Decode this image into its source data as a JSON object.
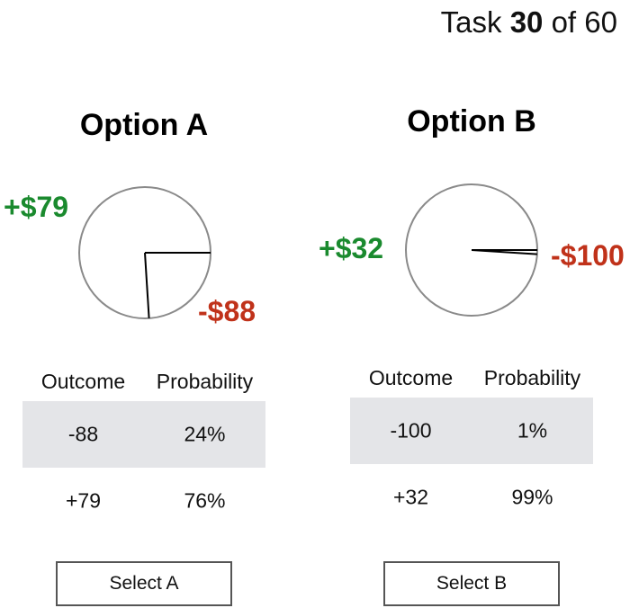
{
  "header": {
    "task_prefix": "Task",
    "task_current": "30",
    "task_of": "of",
    "task_total": "60"
  },
  "options": {
    "a": {
      "title": "Option A",
      "gain_label": "+$79",
      "loss_label": "-$88",
      "gain_probability": 0.76,
      "loss_probability": 0.24,
      "table": {
        "header_outcome": "Outcome",
        "header_probability": "Probability",
        "rows": [
          {
            "outcome": "-88",
            "probability": "24%"
          },
          {
            "outcome": "+79",
            "probability": "76%"
          }
        ]
      },
      "button_label": "Select A"
    },
    "b": {
      "title": "Option B",
      "gain_label": "+$32",
      "loss_label": "-$100",
      "gain_probability": 0.99,
      "loss_probability": 0.01,
      "table": {
        "header_outcome": "Outcome",
        "header_probability": "Probability",
        "rows": [
          {
            "outcome": "-100",
            "probability": "1%"
          },
          {
            "outcome": "+32",
            "probability": "99%"
          }
        ]
      },
      "button_label": "Select B"
    }
  },
  "colors": {
    "gain": "#1a8a2e",
    "loss": "#c0321a",
    "pie_outline": "#8a8a8a",
    "row_shade": "#e4e5e8"
  }
}
